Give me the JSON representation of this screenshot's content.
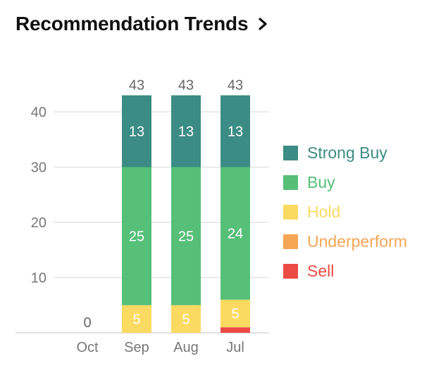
{
  "header": {
    "title": "Recommendation Trends"
  },
  "chart_data": {
    "type": "bar",
    "stacked": true,
    "categories": [
      "Oct",
      "Sep",
      "Aug",
      "Jul"
    ],
    "totals": [
      0,
      43,
      43,
      43
    ],
    "ylim": [
      0,
      43
    ],
    "yticks": [
      10,
      20,
      30,
      40
    ],
    "grid": true,
    "legend_position": "right",
    "series": [
      {
        "name": "Sell",
        "color": "#ec4a45",
        "values": [
          0,
          0,
          0,
          1
        ]
      },
      {
        "name": "Underperform",
        "color": "#f4a654",
        "values": [
          0,
          0,
          0,
          0
        ]
      },
      {
        "name": "Hold",
        "color": "#fbda62",
        "values": [
          0,
          5,
          5,
          5
        ]
      },
      {
        "name": "Buy",
        "color": "#56bf78",
        "values": [
          0,
          25,
          25,
          24
        ]
      },
      {
        "name": "Strong Buy",
        "color": "#3b8c84",
        "values": [
          0,
          13,
          13,
          13
        ]
      }
    ]
  },
  "legend": [
    {
      "label": "Strong Buy",
      "color": "#3b8c84"
    },
    {
      "label": "Buy",
      "color": "#56bf78"
    },
    {
      "label": "Hold",
      "color": "#fbda62"
    },
    {
      "label": "Underperform",
      "color": "#f4a654"
    },
    {
      "label": "Sell",
      "color": "#ec4a45"
    }
  ]
}
